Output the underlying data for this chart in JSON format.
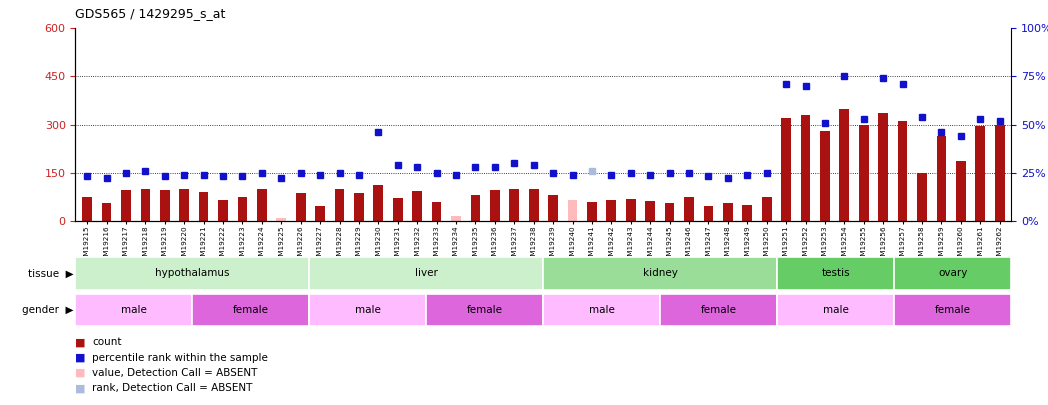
{
  "title": "GDS565 / 1429295_s_at",
  "samples": [
    "GSM19215",
    "GSM19216",
    "GSM19217",
    "GSM19218",
    "GSM19219",
    "GSM19220",
    "GSM19221",
    "GSM19222",
    "GSM19223",
    "GSM19224",
    "GSM19225",
    "GSM19226",
    "GSM19227",
    "GSM19228",
    "GSM19229",
    "GSM19230",
    "GSM19231",
    "GSM19232",
    "GSM19233",
    "GSM19234",
    "GSM19235",
    "GSM19236",
    "GSM19237",
    "GSM19238",
    "GSM19239",
    "GSM19240",
    "GSM19241",
    "GSM19242",
    "GSM19243",
    "GSM19244",
    "GSM19245",
    "GSM19246",
    "GSM19247",
    "GSM19248",
    "GSM19249",
    "GSM19250",
    "GSM19251",
    "GSM19252",
    "GSM19253",
    "GSM19254",
    "GSM19255",
    "GSM19256",
    "GSM19257",
    "GSM19258",
    "GSM19259",
    "GSM19260",
    "GSM19261",
    "GSM19262"
  ],
  "bar_values": [
    75,
    55,
    95,
    100,
    95,
    100,
    90,
    65,
    75,
    98,
    10,
    88,
    45,
    100,
    88,
    110,
    72,
    92,
    58,
    15,
    80,
    95,
    100,
    100,
    80,
    65,
    58,
    65,
    68,
    62,
    55,
    75,
    45,
    55,
    50,
    75,
    320,
    330,
    280,
    350,
    300,
    335,
    310,
    150,
    265,
    185,
    295,
    300
  ],
  "bar_absent": [
    false,
    false,
    false,
    false,
    false,
    false,
    false,
    false,
    false,
    false,
    true,
    false,
    false,
    false,
    false,
    false,
    false,
    false,
    false,
    true,
    false,
    false,
    false,
    false,
    false,
    true,
    false,
    false,
    false,
    false,
    false,
    false,
    false,
    false,
    false,
    false,
    false,
    false,
    false,
    false,
    false,
    false,
    false,
    false,
    false,
    false,
    false,
    false
  ],
  "percentile_values": [
    23,
    22,
    25,
    26,
    23,
    24,
    24,
    23,
    23,
    25,
    22,
    25,
    24,
    25,
    24,
    46,
    29,
    28,
    25,
    24,
    28,
    28,
    30,
    29,
    25,
    24,
    26,
    24,
    25,
    24,
    25,
    25,
    23,
    22,
    24,
    25,
    71,
    70,
    51,
    75,
    53,
    74,
    71,
    54,
    46,
    44,
    53,
    52
  ],
  "percentile_absent": [
    false,
    false,
    false,
    false,
    false,
    false,
    false,
    false,
    false,
    false,
    false,
    false,
    false,
    false,
    false,
    false,
    false,
    false,
    false,
    false,
    false,
    false,
    false,
    false,
    false,
    false,
    true,
    false,
    false,
    false,
    false,
    false,
    false,
    false,
    false,
    false,
    false,
    false,
    false,
    false,
    false,
    false,
    false,
    false,
    false,
    false,
    false,
    false
  ],
  "tissue_groups": [
    {
      "label": "hypothalamus",
      "start": 0,
      "end": 12,
      "color": "#ccf0cc"
    },
    {
      "label": "liver",
      "start": 12,
      "end": 24,
      "color": "#ccf0cc"
    },
    {
      "label": "kidney",
      "start": 24,
      "end": 36,
      "color": "#99dd99"
    },
    {
      "label": "testis",
      "start": 36,
      "end": 42,
      "color": "#66cc66"
    },
    {
      "label": "ovary",
      "start": 42,
      "end": 48,
      "color": "#66cc66"
    }
  ],
  "gender_groups": [
    {
      "label": "male",
      "start": 0,
      "end": 6,
      "color": "#ffbbff"
    },
    {
      "label": "female",
      "start": 6,
      "end": 12,
      "color": "#dd66dd"
    },
    {
      "label": "male",
      "start": 12,
      "end": 18,
      "color": "#ffbbff"
    },
    {
      "label": "female",
      "start": 18,
      "end": 24,
      "color": "#dd66dd"
    },
    {
      "label": "male",
      "start": 24,
      "end": 30,
      "color": "#ffbbff"
    },
    {
      "label": "female",
      "start": 30,
      "end": 36,
      "color": "#dd66dd"
    },
    {
      "label": "male",
      "start": 36,
      "end": 42,
      "color": "#ffbbff"
    },
    {
      "label": "female",
      "start": 42,
      "end": 48,
      "color": "#dd66dd"
    }
  ],
  "bar_color_present": "#aa1111",
  "bar_color_absent": "#ffbbbb",
  "dot_color_present": "#1111cc",
  "dot_color_absent": "#aabbdd",
  "ylim_left": [
    0,
    600
  ],
  "ylim_right": [
    0,
    100
  ],
  "yticks_left": [
    0,
    150,
    300,
    450,
    600
  ],
  "ytick_labels_left": [
    "0",
    "150",
    "300",
    "450",
    "600"
  ],
  "ytick_labels_right": [
    "0%",
    "25%",
    "50%",
    "75%",
    "100%"
  ],
  "hlines": [
    150,
    300,
    450
  ],
  "legend_items": [
    {
      "color": "#aa1111",
      "label": "count"
    },
    {
      "color": "#1111cc",
      "label": "percentile rank within the sample"
    },
    {
      "color": "#ffbbbb",
      "label": "value, Detection Call = ABSENT"
    },
    {
      "color": "#aabbdd",
      "label": "rank, Detection Call = ABSENT"
    }
  ]
}
